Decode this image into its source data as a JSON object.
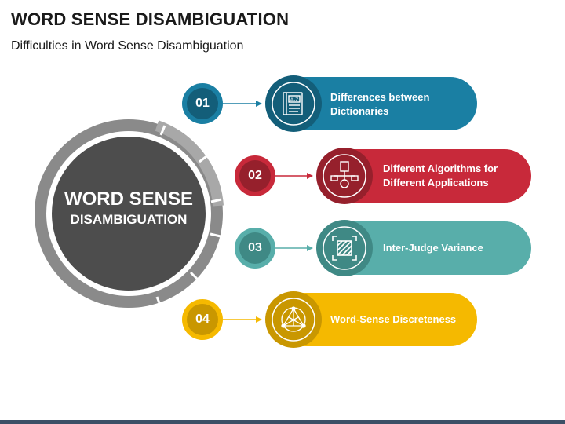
{
  "header": {
    "title": "WORD SENSE DISAMBIGUATION",
    "subtitle": "Difficulties in Word Sense Disambiguation"
  },
  "center": {
    "line1": "WORD SENSE",
    "line2": "DISAMBIGUATION"
  },
  "items": [
    {
      "number": "01",
      "label_line1": "Differences between",
      "label_line2": "Dictionaries",
      "color": "#1a7fa3",
      "dark": "#135e79",
      "icon": "dictionary-az-icon"
    },
    {
      "number": "02",
      "label_line1": "Different Algorithms for",
      "label_line2": "Different Applications",
      "color": "#c8293a",
      "dark": "#96202c",
      "icon": "algorithm-flow-icon"
    },
    {
      "number": "03",
      "label_line1": "Inter-Judge Variance",
      "label_line2": "",
      "color": "#58aeaa",
      "dark": "#3f8985",
      "icon": "scan-frame-icon"
    },
    {
      "number": "04",
      "label_line1": "Word-Sense Discreteness",
      "label_line2": "",
      "color": "#f5b900",
      "dark": "#c99700",
      "icon": "network-triangle-icon"
    }
  ],
  "colors": {
    "ring": "#8a8a8a",
    "center_fill": "#4d4d4d",
    "bottom_bar": "#3c4f66"
  }
}
